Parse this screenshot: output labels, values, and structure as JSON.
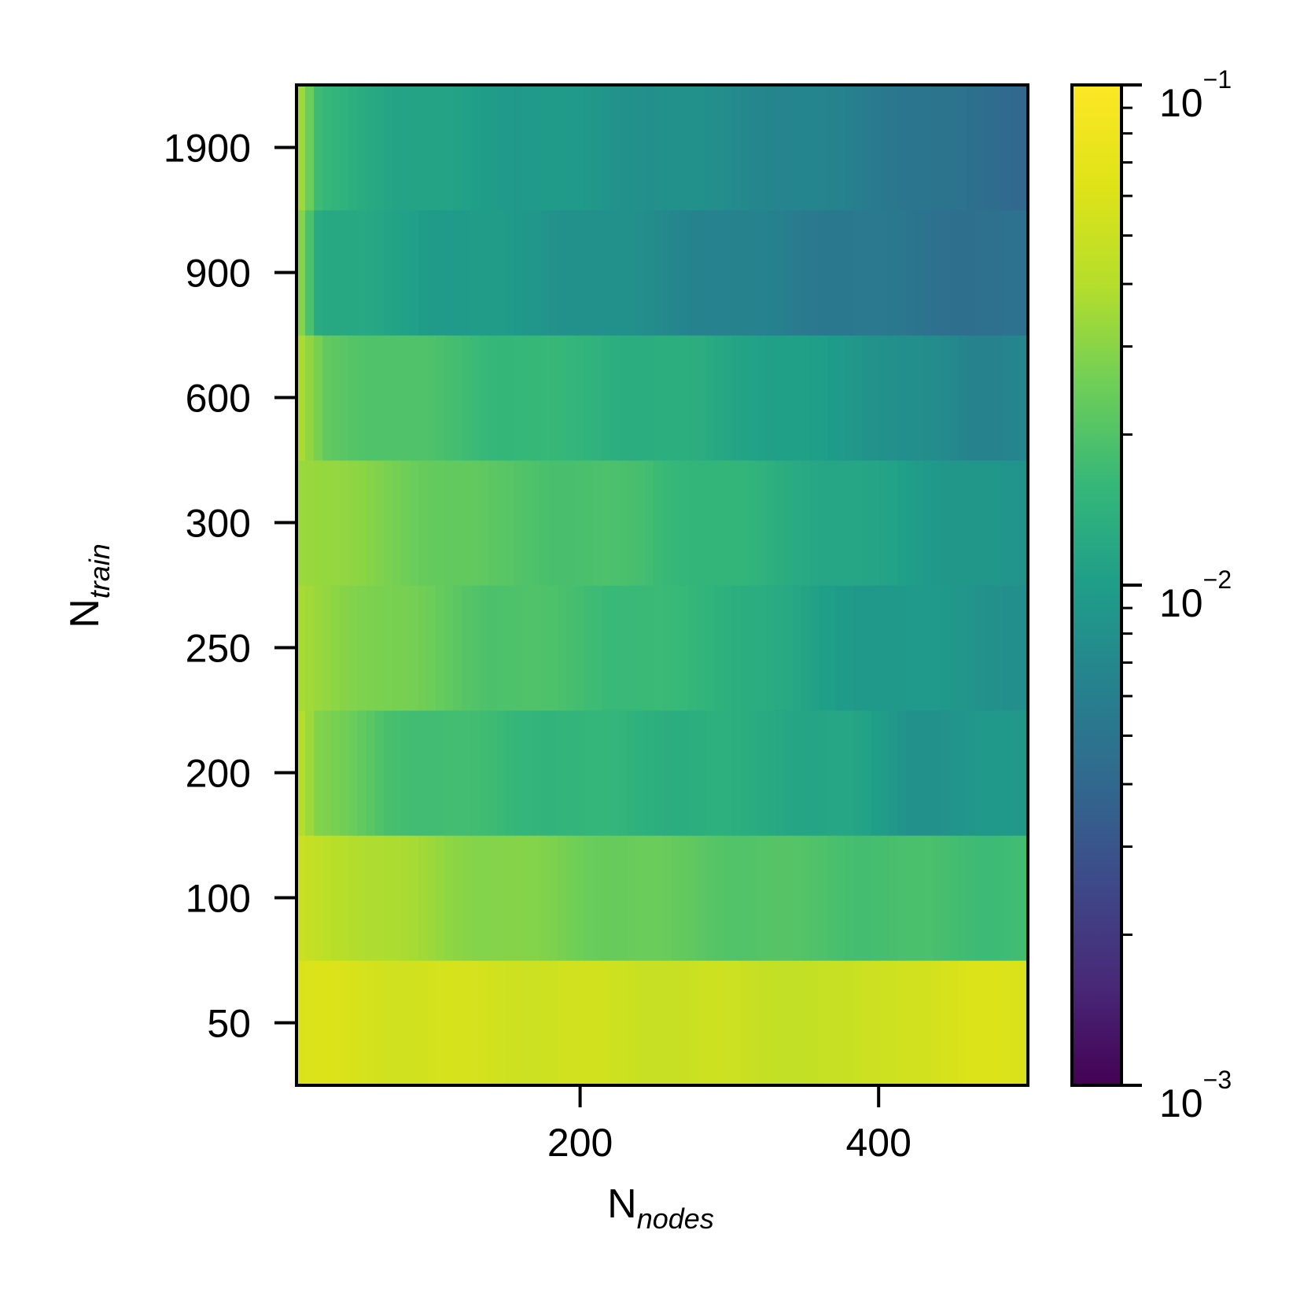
{
  "chart_data": {
    "type": "heatmap",
    "title": "",
    "xlabel": {
      "main": "N",
      "sub": "nodes"
    },
    "ylabel": {
      "main": "N",
      "sub": "train"
    },
    "x_range": [
      10,
      500
    ],
    "x_ticks": [
      200,
      400
    ],
    "y_categories": [
      "50",
      "100",
      "200",
      "250",
      "300",
      "600",
      "900",
      "1900"
    ],
    "colorbar": {
      "scale": "log",
      "range": [
        0.001,
        0.1
      ],
      "colormap": "viridis",
      "tick_labels": [
        {
          "base": "10",
          "exp": "−3",
          "value": 0.001
        },
        {
          "base": "10",
          "exp": "−2",
          "value": 0.01
        },
        {
          "base": "10",
          "exp": "−1",
          "value": 0.1
        }
      ]
    },
    "rows": [
      {
        "n_train": "50",
        "log10_error_profile": [
          [
            10,
            -1.22
          ],
          [
            60,
            -1.25
          ],
          [
            160,
            -1.27
          ],
          [
            300,
            -1.31
          ],
          [
            380,
            -1.33
          ],
          [
            420,
            -1.25
          ],
          [
            470,
            -1.23
          ],
          [
            500,
            -1.22
          ]
        ]
      },
      {
        "n_train": "100",
        "log10_error_profile": [
          [
            10,
            -1.3
          ],
          [
            60,
            -1.42
          ],
          [
            130,
            -1.52
          ],
          [
            230,
            -1.62
          ],
          [
            330,
            -1.7
          ],
          [
            420,
            -1.74
          ],
          [
            500,
            -1.76
          ]
        ]
      },
      {
        "n_train": "200",
        "log10_error_profile": [
          [
            10,
            -1.35
          ],
          [
            25,
            -1.55
          ],
          [
            70,
            -1.72
          ],
          [
            160,
            -1.8
          ],
          [
            280,
            -1.87
          ],
          [
            380,
            -1.95
          ],
          [
            420,
            -2.08
          ],
          [
            500,
            -2.05
          ]
        ]
      },
      {
        "n_train": "250",
        "log10_error_profile": [
          [
            10,
            -1.45
          ],
          [
            60,
            -1.55
          ],
          [
            140,
            -1.7
          ],
          [
            240,
            -1.78
          ],
          [
            320,
            -1.87
          ],
          [
            360,
            -2.0
          ],
          [
            440,
            -2.05
          ],
          [
            500,
            -2.1
          ]
        ]
      },
      {
        "n_train": "300",
        "log10_error_profile": [
          [
            10,
            -1.45
          ],
          [
            60,
            -1.55
          ],
          [
            140,
            -1.68
          ],
          [
            240,
            -1.75
          ],
          [
            330,
            -1.87
          ],
          [
            400,
            -1.97
          ],
          [
            500,
            -2.1
          ]
        ]
      },
      {
        "n_train": "600",
        "log10_error_profile": [
          [
            10,
            -1.42
          ],
          [
            30,
            -1.65
          ],
          [
            140,
            -1.78
          ],
          [
            280,
            -1.9
          ],
          [
            350,
            -2.0
          ],
          [
            420,
            -2.1
          ],
          [
            460,
            -2.2
          ],
          [
            500,
            -2.15
          ]
        ]
      },
      {
        "n_train": "900",
        "log10_error_profile": [
          [
            10,
            -1.42
          ],
          [
            25,
            -1.9
          ],
          [
            100,
            -2.0
          ],
          [
            200,
            -2.08
          ],
          [
            300,
            -2.2
          ],
          [
            380,
            -2.27
          ],
          [
            440,
            -2.32
          ],
          [
            500,
            -2.35
          ]
        ]
      },
      {
        "n_train": "1900",
        "log10_error_profile": [
          [
            10,
            -1.4
          ],
          [
            25,
            -1.8
          ],
          [
            80,
            -1.95
          ],
          [
            200,
            -2.05
          ],
          [
            320,
            -2.15
          ],
          [
            400,
            -2.25
          ],
          [
            460,
            -2.35
          ],
          [
            500,
            -2.38
          ]
        ]
      }
    ]
  }
}
